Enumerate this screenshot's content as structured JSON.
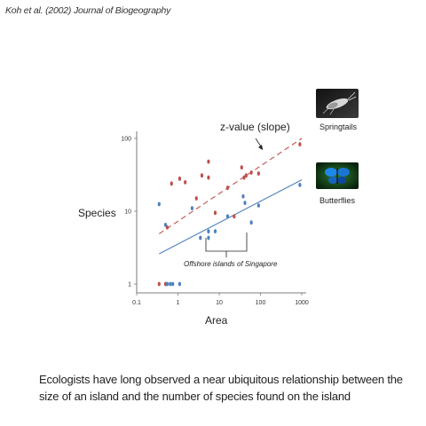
{
  "citation": "Koh et al. (2002) Journal of Biogeography",
  "caption": "Ecologists have long observed a near ubiquitous relationship between the size of an island and the number of species found on the island",
  "chart_data": {
    "type": "scatter",
    "xscale": "log",
    "yscale": "log",
    "xlabel": "Area",
    "ylabel": "Species",
    "xlim": [
      0.1,
      1000
    ],
    "ylim": [
      1,
      100
    ],
    "xticks": [
      {
        "value": 0.1,
        "label": "0.1"
      },
      {
        "value": 1,
        "label": "1"
      },
      {
        "value": 10,
        "label": "10"
      },
      {
        "value": 100,
        "label": "100"
      },
      {
        "value": 1000,
        "label": "1000"
      }
    ],
    "yticks": [
      {
        "value": 1,
        "label": "1"
      },
      {
        "value": 10,
        "label": "10"
      },
      {
        "value": 100,
        "label": "100"
      }
    ],
    "series": [
      {
        "key": "springtails",
        "color": "#c0504d",
        "points": [
          {
            "x": 0.35,
            "y": 1
          },
          {
            "x": 0.5,
            "y": 1
          },
          {
            "x": 0.55,
            "y": 6
          },
          {
            "x": 0.7,
            "y": 24
          },
          {
            "x": 1.1,
            "y": 28
          },
          {
            "x": 1.5,
            "y": 25
          },
          {
            "x": 2.8,
            "y": 15
          },
          {
            "x": 3.8,
            "y": 31
          },
          {
            "x": 5.5,
            "y": 29
          },
          {
            "x": 5.5,
            "y": 48
          },
          {
            "x": 8,
            "y": 9.5
          },
          {
            "x": 16,
            "y": 21
          },
          {
            "x": 23,
            "y": 8.5
          },
          {
            "x": 35,
            "y": 40
          },
          {
            "x": 40,
            "y": 29
          },
          {
            "x": 45,
            "y": 31
          },
          {
            "x": 60,
            "y": 34
          },
          {
            "x": 90,
            "y": 33
          },
          {
            "x": 900,
            "y": 83
          }
        ],
        "fit": {
          "x": [
            0.35,
            1000
          ],
          "y": [
            4.9,
            100
          ]
        }
      },
      {
        "key": "butterflies",
        "color": "#4f81bd",
        "points": [
          {
            "x": 0.35,
            "y": 12.5
          },
          {
            "x": 0.5,
            "y": 6.5
          },
          {
            "x": 0.55,
            "y": 1
          },
          {
            "x": 0.65,
            "y": 1
          },
          {
            "x": 0.75,
            "y": 1
          },
          {
            "x": 1.1,
            "y": 1
          },
          {
            "x": 2.2,
            "y": 11
          },
          {
            "x": 3.5,
            "y": 4.3
          },
          {
            "x": 5.5,
            "y": 5.3
          },
          {
            "x": 5.5,
            "y": 4.3
          },
          {
            "x": 8,
            "y": 5.3
          },
          {
            "x": 16,
            "y": 8.5
          },
          {
            "x": 38,
            "y": 16
          },
          {
            "x": 42,
            "y": 13
          },
          {
            "x": 60,
            "y": 7
          },
          {
            "x": 90,
            "y": 12
          },
          {
            "x": 900,
            "y": 23
          }
        ],
        "fit": {
          "x": [
            0.35,
            1000
          ],
          "y": [
            2.6,
            27
          ]
        }
      }
    ],
    "annotations": {
      "slope": "z-value (slope)",
      "offshore": "Offshore islands of Singapore",
      "springtails": "Springtails",
      "butterflies": "Butterflies"
    }
  }
}
